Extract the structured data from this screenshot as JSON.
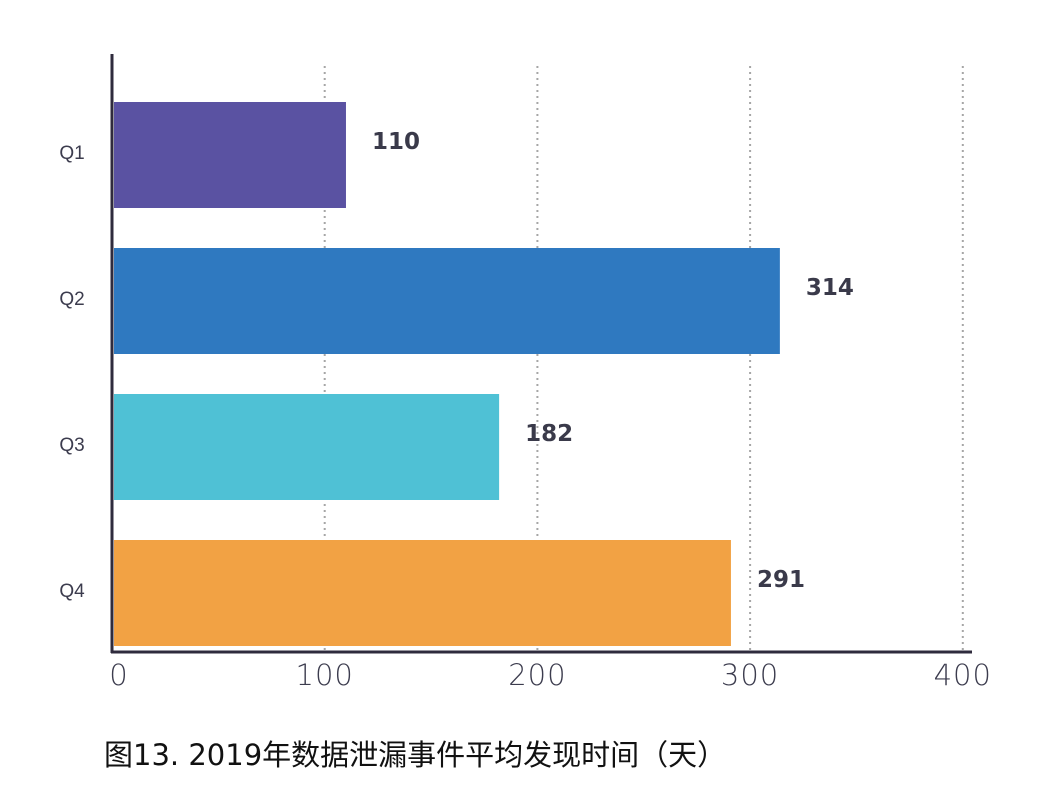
{
  "chart_data": {
    "type": "bar",
    "orientation": "horizontal",
    "categories": [
      "Q1",
      "Q2",
      "Q3",
      "Q4"
    ],
    "values": [
      110,
      314,
      182,
      291
    ],
    "data_labels": [
      "110",
      "314",
      "182",
      "291"
    ],
    "x_ticks": [
      "0",
      "100",
      "200",
      "300",
      "400"
    ],
    "xlim": [
      0,
      400
    ],
    "grid": "vertical dotted",
    "colors": [
      "#5a52a2",
      "#2f79c0",
      "#4fc1d5",
      "#f2a244"
    ],
    "axis_color": "#2f2b3d",
    "label_color": "#3a3a4a",
    "tick_color": "#3c3c4e"
  },
  "caption": "图13. 2019年数据泄漏事件平均发现时间（天）"
}
